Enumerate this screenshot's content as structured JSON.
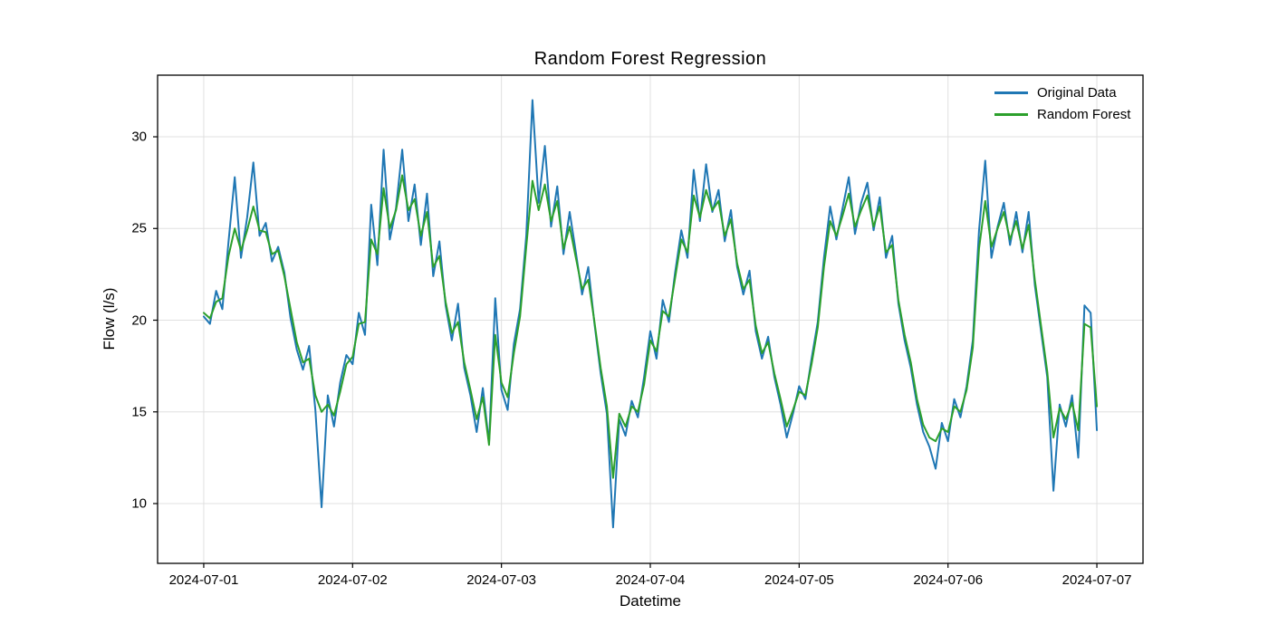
{
  "figure": {
    "title": "Random Forest Regression",
    "xlabel": "Datetime",
    "ylabel": "Flow (l/s)"
  },
  "legend": {
    "entries": [
      {
        "label": "Original Data",
        "color": "#1f77b4"
      },
      {
        "label": "Random Forest",
        "color": "#2ca02c"
      }
    ]
  },
  "style": {
    "background": "#ffffff",
    "grid_color": "#e0e0e0",
    "spine_color": "#000000",
    "tick_color": "#000000",
    "accent_blue": "#1f77b4",
    "accent_green": "#2ca02c"
  },
  "chart_data": {
    "type": "line",
    "title": "Random Forest Regression",
    "xlabel": "Datetime",
    "ylabel": "Flow (l/s)",
    "grid": true,
    "legend_position": "upper right",
    "legend_frame": false,
    "xlim_days": [
      -0.31,
      6.31
    ],
    "ylim": [
      6.74,
      33.36
    ],
    "x_ticks": {
      "values_days": [
        0,
        1,
        2,
        3,
        4,
        5,
        6
      ],
      "labels": [
        "2024-07-01",
        "2024-07-02",
        "2024-07-03",
        "2024-07-04",
        "2024-07-05",
        "2024-07-06",
        "2024-07-07"
      ]
    },
    "y_ticks": {
      "values": [
        10,
        15,
        20,
        25,
        30
      ],
      "labels": [
        "10",
        "15",
        "20",
        "25",
        "30"
      ]
    },
    "x_start_day": 0,
    "x_interval_hours": 1,
    "series": [
      {
        "name": "Original Data",
        "color": "#1f77b4",
        "linewidth": 2,
        "values": [
          20.2,
          19.8,
          21.6,
          20.6,
          24.3,
          27.8,
          23.4,
          25.6,
          28.6,
          24.6,
          25.3,
          23.2,
          24.0,
          22.6,
          20.1,
          18.4,
          17.3,
          18.6,
          15.1,
          9.8,
          15.9,
          14.2,
          16.6,
          18.1,
          17.6,
          20.4,
          19.2,
          26.3,
          23.0,
          29.3,
          24.4,
          26.1,
          29.3,
          25.4,
          27.4,
          24.1,
          26.9,
          22.4,
          24.3,
          20.8,
          18.9,
          20.9,
          17.4,
          15.9,
          13.9,
          16.3,
          13.3,
          21.2,
          16.2,
          15.1,
          18.7,
          20.6,
          24.6,
          32.0,
          26.4,
          29.5,
          25.1,
          27.3,
          23.6,
          25.9,
          23.7,
          21.4,
          22.9,
          19.8,
          17.1,
          14.9,
          8.7,
          14.6,
          13.7,
          15.6,
          14.7,
          16.9,
          19.4,
          17.9,
          21.1,
          19.9,
          22.6,
          24.9,
          23.4,
          28.2,
          25.4,
          28.5,
          25.9,
          27.1,
          24.3,
          26.0,
          22.9,
          21.4,
          22.7,
          19.4,
          17.9,
          19.1,
          16.9,
          15.4,
          13.6,
          14.9,
          16.4,
          15.7,
          17.9,
          19.9,
          23.4,
          26.2,
          24.4,
          26.1,
          27.8,
          24.7,
          26.4,
          27.5,
          24.9,
          26.7,
          23.4,
          24.6,
          20.9,
          18.9,
          17.4,
          15.4,
          13.9,
          13.1,
          11.9,
          14.4,
          13.4,
          15.7,
          14.7,
          16.4,
          18.9,
          24.9,
          28.7,
          23.4,
          25.1,
          26.4,
          24.1,
          25.9,
          23.7,
          25.9,
          21.9,
          19.4,
          16.9,
          10.7,
          15.4,
          14.2,
          15.9,
          12.5,
          20.8,
          20.4,
          14.0
        ]
      },
      {
        "name": "Random Forest",
        "color": "#2ca02c",
        "linewidth": 2,
        "values": [
          20.4,
          20.1,
          21.0,
          21.2,
          23.5,
          25.0,
          23.8,
          24.9,
          26.2,
          24.9,
          24.8,
          23.6,
          23.8,
          22.4,
          20.6,
          18.8,
          17.7,
          17.9,
          15.9,
          15.0,
          15.4,
          14.8,
          16.1,
          17.6,
          18.0,
          19.8,
          19.9,
          24.4,
          23.6,
          27.2,
          25.0,
          26.0,
          27.9,
          26.0,
          26.6,
          24.6,
          25.9,
          22.9,
          23.5,
          21.0,
          19.3,
          19.9,
          17.7,
          16.2,
          14.6,
          15.8,
          13.2,
          19.2,
          16.6,
          15.8,
          18.2,
          20.2,
          24.0,
          27.6,
          26.0,
          27.4,
          25.4,
          26.5,
          23.9,
          25.1,
          23.4,
          21.7,
          22.2,
          19.9,
          17.4,
          15.3,
          11.4,
          14.9,
          14.2,
          15.3,
          15.0,
          16.5,
          18.9,
          18.3,
          20.5,
          20.2,
          22.3,
          24.4,
          23.7,
          26.8,
          25.6,
          27.1,
          26.0,
          26.5,
          24.6,
          25.5,
          23.1,
          21.7,
          22.2,
          19.7,
          18.2,
          18.8,
          17.1,
          15.7,
          14.2,
          15.1,
          16.1,
          15.9,
          17.6,
          19.6,
          22.9,
          25.4,
          24.6,
          25.7,
          26.9,
          25.1,
          26.0,
          26.8,
          25.1,
          26.2,
          23.7,
          24.1,
          21.1,
          19.2,
          17.7,
          15.7,
          14.3,
          13.6,
          13.4,
          14.1,
          13.9,
          15.3,
          15.0,
          16.2,
          18.5,
          23.9,
          26.5,
          24.0,
          25.0,
          25.9,
          24.4,
          25.4,
          23.9,
          25.2,
          22.2,
          19.7,
          17.2,
          13.6,
          15.2,
          14.6,
          15.5,
          14.0,
          19.8,
          19.6,
          15.3
        ]
      }
    ]
  }
}
